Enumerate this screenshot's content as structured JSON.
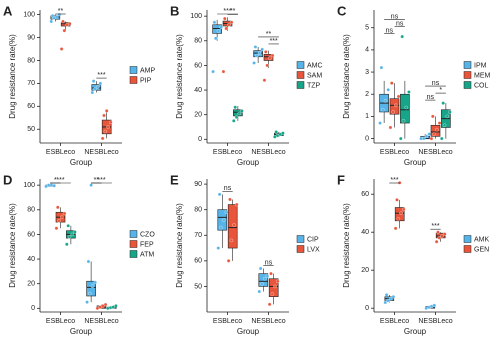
{
  "chart_data": [
    {
      "type": "box",
      "panel": "A",
      "ylabel": "Drug resistance rate(%)",
      "xlabel": "Group",
      "categories": [
        "ESBLeco",
        "NESBLeco"
      ],
      "ylim": [
        44,
        102
      ],
      "yticks": [
        50,
        60,
        70,
        80,
        90,
        100
      ],
      "series": [
        {
          "name": "AMP",
          "color": "#56B4E9",
          "boxes": [
            {
              "whislo": 97,
              "q1": 98,
              "med": 99,
              "q3": 99.5,
              "whishi": 100,
              "points": [
                97,
                98.5,
                99,
                100,
                99.5
              ]
            },
            {
              "whislo": 66,
              "q1": 67,
              "med": 68,
              "q3": 69.5,
              "whishi": 71,
              "points": [
                66,
                67.5,
                68.5,
                70,
                71
              ]
            }
          ]
        },
        {
          "name": "PIP",
          "color": "#E8553A",
          "boxes": [
            {
              "whislo": 93,
              "q1": 95,
              "med": 96,
              "q3": 96.5,
              "whishi": 97,
              "points": [
                85,
                93,
                95.5,
                96,
                97
              ]
            },
            {
              "whislo": 46,
              "q1": 48,
              "med": 51,
              "q3": 54,
              "whishi": 58,
              "points": [
                46,
                49,
                51,
                53,
                56,
                58
              ]
            }
          ]
        }
      ],
      "annotations": [
        {
          "text": "**",
          "category": "ESBLeco",
          "pair": [
            "AMP",
            "PIP"
          ]
        },
        {
          "text": "***",
          "category": "NESBLeco",
          "pair": [
            "AMP",
            "PIP"
          ]
        }
      ]
    },
    {
      "type": "box",
      "panel": "B",
      "ylabel": "Drug resistance rate(%)",
      "xlabel": "Group",
      "categories": [
        "ESBLeco",
        "NESBLeco"
      ],
      "ylim": [
        -3,
        105
      ],
      "yticks": [
        0,
        20,
        40,
        60,
        80,
        100
      ],
      "series": [
        {
          "name": "AMC",
          "color": "#56B4E9",
          "boxes": [
            {
              "whislo": 80,
              "q1": 86,
              "med": 90,
              "q3": 93,
              "whishi": 97,
              "points": [
                55,
                82,
                88,
                91,
                95
              ]
            },
            {
              "whislo": 62,
              "q1": 67,
              "med": 70,
              "q3": 72,
              "whishi": 75,
              "points": [
                62,
                68,
                70,
                73,
                75
              ]
            }
          ]
        },
        {
          "name": "SAM",
          "color": "#E8553A",
          "boxes": [
            {
              "whislo": 88,
              "q1": 92,
              "med": 94,
              "q3": 96,
              "whishi": 99,
              "points": [
                55,
                90,
                93,
                95,
                98
              ]
            },
            {
              "whislo": 58,
              "q1": 64,
              "med": 67,
              "q3": 69,
              "whishi": 72,
              "points": [
                48,
                60,
                66,
                68,
                71
              ]
            }
          ]
        },
        {
          "name": "TZP",
          "color": "#17A589",
          "boxes": [
            {
              "whislo": 15,
              "q1": 19,
              "med": 22,
              "q3": 24,
              "whishi": 27,
              "points": [
                15,
                18,
                21,
                23,
                26
              ]
            },
            {
              "whislo": 2,
              "q1": 3,
              "med": 4,
              "q3": 5,
              "whishi": 6,
              "points": [
                2,
                3,
                4,
                5,
                6
              ]
            }
          ]
        }
      ],
      "annotations": [
        {
          "text": "**",
          "category": "ESBLeco",
          "pair": [
            "SAM",
            "TZP"
          ]
        },
        {
          "text": "***",
          "category": "ESBLeco",
          "pair": [
            "AMC",
            "TZP"
          ]
        },
        {
          "text": "***",
          "category": "NESBLeco",
          "pair": [
            "SAM",
            "TZP"
          ]
        },
        {
          "text": "**",
          "category": "NESBLeco",
          "pair": [
            "AMC",
            "TZP"
          ]
        }
      ]
    },
    {
      "type": "box",
      "panel": "C",
      "ylabel": "Drug resistance rate(%)",
      "xlabel": "Group",
      "categories": [
        "ESBLeco",
        "NESBLeco"
      ],
      "ylim": [
        -0.2,
        5.8
      ],
      "yticks": [
        0,
        1,
        2,
        3,
        4,
        5
      ],
      "series": [
        {
          "name": "IPM",
          "color": "#56B4E9",
          "boxes": [
            {
              "whislo": 0.7,
              "q1": 1.2,
              "med": 1.6,
              "q3": 2.0,
              "whishi": 2.6,
              "points": [
                0.7,
                1.3,
                1.7,
                2.2,
                3.2
              ]
            },
            {
              "whislo": 0,
              "q1": 0,
              "med": 0,
              "q3": 0.1,
              "whishi": 0.2,
              "points": [
                0,
                0,
                0.1,
                0.2
              ]
            }
          ]
        },
        {
          "name": "MEM",
          "color": "#E8553A",
          "boxes": [
            {
              "whislo": 0.5,
              "q1": 1.1,
              "med": 1.5,
              "q3": 1.8,
              "whishi": 2.5,
              "points": [
                0.5,
                1.2,
                1.5,
                1.9,
                2.5
              ]
            },
            {
              "whislo": 0,
              "q1": 0.1,
              "med": 0.3,
              "q3": 0.6,
              "whishi": 1.0,
              "points": [
                0,
                0.2,
                0.4,
                0.7,
                1.0
              ]
            }
          ]
        },
        {
          "name": "COL",
          "color": "#17A589",
          "boxes": [
            {
              "whislo": 0,
              "q1": 0.7,
              "med": 1.3,
              "q3": 2.0,
              "whishi": 2.6,
              "points": [
                0,
                0.8,
                1.4,
                2.1,
                4.6
              ]
            },
            {
              "whislo": 0,
              "q1": 0.5,
              "med": 0.9,
              "q3": 1.3,
              "whishi": 1.6,
              "points": [
                0,
                0.6,
                1.0,
                1.2,
                1.6
              ]
            }
          ]
        }
      ],
      "annotations": [
        {
          "text": "ns",
          "category": "ESBLeco",
          "pair": [
            "IPM",
            "MEM"
          ]
        },
        {
          "text": "ns",
          "category": "ESBLeco",
          "pair": [
            "MEM",
            "COL"
          ]
        },
        {
          "text": "ns",
          "category": "ESBLeco",
          "pair": [
            "IPM",
            "COL"
          ]
        },
        {
          "text": "ns",
          "category": "NESBLeco",
          "pair": [
            "IPM",
            "MEM"
          ]
        },
        {
          "text": "*",
          "category": "NESBLeco",
          "pair": [
            "MEM",
            "COL"
          ]
        },
        {
          "text": "ns",
          "category": "NESBLeco",
          "pair": [
            "IPM",
            "COL"
          ]
        }
      ]
    },
    {
      "type": "box",
      "panel": "D",
      "ylabel": "Drug resistance rate(%)",
      "xlabel": "Group",
      "categories": [
        "ESBLeco",
        "NESBLeco"
      ],
      "ylim": [
        -3,
        105
      ],
      "yticks": [
        0,
        20,
        40,
        60,
        80,
        100
      ],
      "series": [
        {
          "name": "CZO",
          "color": "#56B4E9",
          "boxes": [
            {
              "whislo": 99,
              "q1": 99,
              "med": 100,
              "q3": 100,
              "whishi": 100,
              "points": [
                99,
                100,
                100,
                99.5
              ]
            },
            {
              "whislo": 5,
              "q1": 10,
              "med": 17,
              "q3": 22,
              "whishi": 38,
              "points": [
                5,
                12,
                18,
                21,
                38,
                100
              ]
            }
          ]
        },
        {
          "name": "FEP",
          "color": "#E8553A",
          "boxes": [
            {
              "whislo": 65,
              "q1": 70,
              "med": 74,
              "q3": 78,
              "whishi": 82,
              "points": [
                65,
                71,
                74,
                77,
                82
              ]
            },
            {
              "whislo": 0,
              "q1": 0,
              "med": 1,
              "q3": 2,
              "whishi": 3,
              "points": [
                0,
                1,
                2,
                3
              ]
            }
          ]
        },
        {
          "name": "ATM",
          "color": "#17A589",
          "boxes": [
            {
              "whislo": 52,
              "q1": 57,
              "med": 60,
              "q3": 63,
              "whishi": 67,
              "points": [
                52,
                58,
                60,
                62,
                67
              ]
            },
            {
              "whislo": 0,
              "q1": 0,
              "med": 0.5,
              "q3": 1,
              "whishi": 2,
              "points": [
                0,
                0.5,
                1,
                2
              ]
            }
          ]
        }
      ],
      "annotations": [
        {
          "text": "*",
          "category": "ESBLeco",
          "pair": [
            "CZO",
            "FEP"
          ]
        },
        {
          "text": "***",
          "category": "ESBLeco",
          "pair": [
            "CZO",
            "ATM"
          ]
        },
        {
          "text": "**",
          "category": "NESBLeco",
          "pair": [
            "CZO",
            "FEP"
          ]
        },
        {
          "text": "***",
          "category": "NESBLeco",
          "pair": [
            "CZO",
            "ATM"
          ]
        }
      ]
    },
    {
      "type": "box",
      "panel": "E",
      "ylabel": "Drug resistance rate(%)",
      "xlabel": "Group",
      "categories": [
        "ESBLeco",
        "NESBLeco"
      ],
      "ylim": [
        40,
        92
      ],
      "yticks": [
        50,
        60,
        70,
        80,
        90
      ],
      "series": [
        {
          "name": "CIP",
          "color": "#56B4E9",
          "boxes": [
            {
              "whislo": 65,
              "q1": 72,
              "med": 77,
              "q3": 80,
              "whishi": 86,
              "points": [
                65,
                73,
                76,
                79,
                86
              ]
            },
            {
              "whislo": 48,
              "q1": 50,
              "med": 52,
              "q3": 55,
              "whishi": 57,
              "points": [
                48,
                51,
                53,
                54,
                57
              ]
            }
          ]
        },
        {
          "name": "LVX",
          "color": "#E8553A",
          "boxes": [
            {
              "whislo": 60,
              "q1": 65,
              "med": 73,
              "q3": 82,
              "whishi": 84,
              "points": [
                60,
                68,
                74,
                82,
                84
              ]
            },
            {
              "whislo": 43,
              "q1": 46,
              "med": 50,
              "q3": 53,
              "whishi": 55,
              "points": [
                43,
                47,
                50,
                52,
                55
              ]
            }
          ]
        }
      ],
      "annotations": [
        {
          "text": "ns",
          "category": "ESBLeco",
          "pair": [
            "CIP",
            "LVX"
          ]
        },
        {
          "text": "ns",
          "category": "NESBLeco",
          "pair": [
            "CIP",
            "LVX"
          ]
        }
      ]
    },
    {
      "type": "box",
      "panel": "F",
      "ylabel": "Drug resistance rate(%)",
      "xlabel": "Group",
      "categories": [
        "ESBLeco",
        "NESBLeco"
      ],
      "ylim": [
        -2,
        68
      ],
      "yticks": [
        0,
        20,
        40,
        60
      ],
      "series": [
        {
          "name": "AMK",
          "color": "#56B4E9",
          "boxes": [
            {
              "whislo": 3,
              "q1": 4,
              "med": 5,
              "q3": 6,
              "whishi": 7,
              "points": [
                3,
                4,
                5,
                6,
                7
              ]
            },
            {
              "whislo": 0,
              "q1": 0,
              "med": 0.5,
              "q3": 1,
              "whishi": 1.5,
              "points": [
                0,
                0.5,
                1,
                1.5
              ]
            }
          ]
        },
        {
          "name": "GEN",
          "color": "#E8553A",
          "boxes": [
            {
              "whislo": 42,
              "q1": 46,
              "med": 50,
              "q3": 53,
              "whishi": 57,
              "points": [
                42,
                47,
                50,
                52,
                57,
                66
              ]
            },
            {
              "whislo": 35,
              "q1": 37,
              "med": 38,
              "q3": 39.5,
              "whishi": 40,
              "points": [
                35,
                37,
                38,
                39,
                40
              ]
            }
          ]
        }
      ],
      "annotations": [
        {
          "text": "***",
          "category": "ESBLeco",
          "pair": [
            "AMK",
            "GEN"
          ]
        },
        {
          "text": "***",
          "category": "NESBLeco",
          "pair": [
            "AMK",
            "GEN"
          ]
        }
      ]
    }
  ]
}
